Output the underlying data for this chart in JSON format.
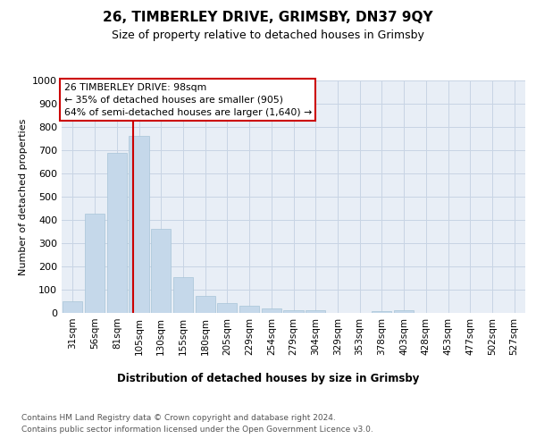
{
  "title": "26, TIMBERLEY DRIVE, GRIMSBY, DN37 9QY",
  "subtitle": "Size of property relative to detached houses in Grimsby",
  "xlabel": "Distribution of detached houses by size in Grimsby",
  "ylabel": "Number of detached properties",
  "footnote1": "Contains HM Land Registry data © Crown copyright and database right 2024.",
  "footnote2": "Contains public sector information licensed under the Open Government Licence v3.0.",
  "bar_color": "#c5d8ea",
  "bar_edge_color": "#a8c4d8",
  "grid_color": "#c8d4e4",
  "annotation_box_color": "#cc0000",
  "vline_color": "#cc0000",
  "background_color": "#e8eef6",
  "categories": [
    "31sqm",
    "56sqm",
    "81sqm",
    "105sqm",
    "130sqm",
    "155sqm",
    "180sqm",
    "205sqm",
    "229sqm",
    "254sqm",
    "279sqm",
    "304sqm",
    "329sqm",
    "353sqm",
    "378sqm",
    "403sqm",
    "428sqm",
    "453sqm",
    "477sqm",
    "502sqm",
    "527sqm"
  ],
  "values": [
    50,
    425,
    688,
    760,
    363,
    155,
    75,
    42,
    30,
    18,
    12,
    10,
    0,
    0,
    8,
    10,
    0,
    0,
    0,
    0,
    0
  ],
  "ylim": [
    0,
    1000
  ],
  "yticks": [
    0,
    100,
    200,
    300,
    400,
    500,
    600,
    700,
    800,
    900,
    1000
  ],
  "vline_x": 2.75,
  "annotation_text_line1": "26 TIMBERLEY DRIVE: 98sqm",
  "annotation_text_line2": "← 35% of detached houses are smaller (905)",
  "annotation_text_line3": "64% of semi-detached houses are larger (1,640) →"
}
